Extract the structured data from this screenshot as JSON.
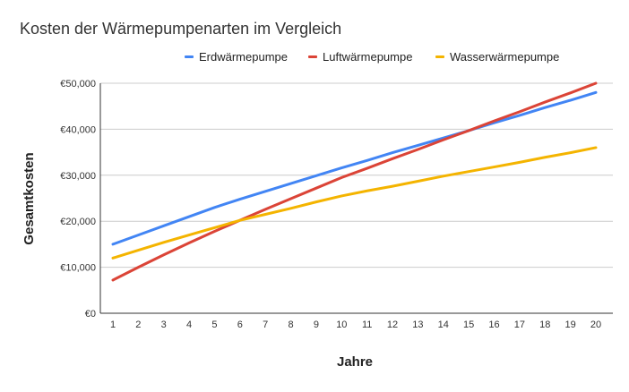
{
  "chart_data": {
    "type": "line",
    "title": "Kosten der Wärmepumpenarten im Vergleich",
    "xlabel": "Jahre",
    "ylabel": "Gesamtkosten",
    "x": [
      1,
      2,
      3,
      4,
      5,
      6,
      7,
      8,
      9,
      10,
      11,
      12,
      13,
      14,
      15,
      16,
      17,
      18,
      19,
      20
    ],
    "ylim": [
      0,
      50000
    ],
    "yticks": [
      0,
      10000,
      20000,
      30000,
      40000,
      50000
    ],
    "ytick_labels": [
      "€0",
      "€10,000",
      "€20,000",
      "€30,000",
      "€40,000",
      "€50,000"
    ],
    "grid": true,
    "legend_position": "top",
    "series": [
      {
        "name": "Erdwärmepumpe",
        "color": "#4285F4",
        "values": [
          15000,
          17000,
          19000,
          21000,
          23000,
          24800,
          26500,
          28200,
          29900,
          31600,
          33200,
          34900,
          36500,
          38100,
          39700,
          41400,
          43000,
          44700,
          46300,
          48000
        ]
      },
      {
        "name": "Luftwärmepumpe",
        "color": "#DB4437",
        "values": [
          7200,
          10000,
          12700,
          15300,
          17800,
          20200,
          22600,
          24900,
          27200,
          29500,
          31500,
          33600,
          35600,
          37700,
          39700,
          41800,
          43800,
          45900,
          47900,
          50000
        ]
      },
      {
        "name": "Wasserwärmepumpe",
        "color": "#F4B400",
        "values": [
          12000,
          13700,
          15400,
          17000,
          18600,
          20200,
          21500,
          22800,
          24200,
          25500,
          26600,
          27600,
          28700,
          29800,
          30800,
          31800,
          32800,
          33900,
          34900,
          36000
        ]
      }
    ]
  }
}
